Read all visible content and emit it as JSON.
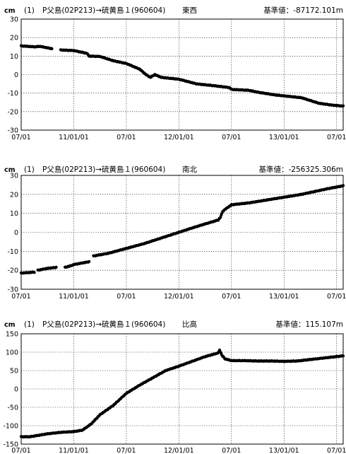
{
  "chart_data": [
    {
      "type": "scatter",
      "unit": "cm",
      "station": "(1)",
      "route": "P父島(02P213)→硫黄島１(960604)",
      "component": "東西",
      "ref_label": "基準値：",
      "ref_value": "-87172.101m",
      "ylim": [
        -30,
        30
      ],
      "yticks": [
        30,
        20,
        10,
        0,
        -10,
        -20,
        -30
      ],
      "xlim": [
        0,
        72
      ],
      "xticks": [
        {
          "x": 0,
          "label": "07/01"
        },
        {
          "x": 12,
          "label": "11/01/01"
        },
        {
          "x": 24,
          "label": "07/01"
        },
        {
          "x": 36,
          "label": "12/01/01"
        },
        {
          "x": 48,
          "label": "07/01"
        },
        {
          "x": 60,
          "label": "13/01/01"
        },
        {
          "x": 72,
          "label": "07/01"
        }
      ],
      "grid": true,
      "series": [
        {
          "gaps_after": [
            3
          ],
          "points": [
            [
              0,
              15.5
            ],
            [
              3.2,
              15
            ],
            [
              4.2,
              15.3
            ],
            [
              7,
              14
            ],
            [
              9,
              13.3
            ],
            [
              12,
              13
            ],
            [
              15,
              11.5
            ],
            [
              15.5,
              10
            ],
            [
              18,
              9.8
            ],
            [
              21,
              7.5
            ],
            [
              24,
              6
            ],
            [
              27,
              3
            ],
            [
              28.5,
              0
            ],
            [
              29.5,
              -1.5
            ],
            [
              30.5,
              0
            ],
            [
              32,
              -1.5
            ],
            [
              36,
              -2.5
            ],
            [
              40,
              -5
            ],
            [
              44,
              -6
            ],
            [
              47.5,
              -7
            ],
            [
              48,
              -8
            ],
            [
              52,
              -8.5
            ],
            [
              54,
              -9.5
            ],
            [
              58,
              -11
            ],
            [
              62,
              -12
            ],
            [
              64,
              -12.5
            ],
            [
              68,
              -15.5
            ],
            [
              71,
              -16.5
            ],
            [
              73.5,
              -17
            ]
          ]
        }
      ]
    },
    {
      "type": "scatter",
      "unit": "cm",
      "station": "(1)",
      "route": "P父島(02P213)→硫黄島１(960604)",
      "component": "南北",
      "ref_label": "基準値：",
      "ref_value": "-256325.306m",
      "ylim": [
        -30,
        30
      ],
      "yticks": [
        30,
        20,
        10,
        0,
        -10,
        -20,
        -30
      ],
      "xlim": [
        0,
        72
      ],
      "xticks": [
        {
          "x": 0,
          "label": "07/01"
        },
        {
          "x": 12,
          "label": "11/01/01"
        },
        {
          "x": 24,
          "label": "07/01"
        },
        {
          "x": 36,
          "label": "12/01/01"
        },
        {
          "x": 48,
          "label": "07/01"
        },
        {
          "x": 60,
          "label": "13/01/01"
        },
        {
          "x": 72,
          "label": "07/01"
        }
      ],
      "grid": true,
      "series": [
        {
          "gaps_after": [
            1,
            4,
            8
          ],
          "points": [
            [
              0,
              -21.5
            ],
            [
              3,
              -21
            ],
            [
              3.8,
              -20
            ],
            [
              6,
              -19
            ],
            [
              8,
              -18.5
            ],
            [
              10,
              -18.5
            ],
            [
              11.5,
              -17.5
            ],
            [
              12,
              -17
            ],
            [
              15.5,
              -15.5
            ],
            [
              16.5,
              -12.5
            ],
            [
              20,
              -11
            ],
            [
              24,
              -8.5
            ],
            [
              28,
              -6
            ],
            [
              32,
              -3
            ],
            [
              36,
              0
            ],
            [
              40,
              3
            ],
            [
              44,
              5.8
            ],
            [
              45,
              6.5
            ],
            [
              45.5,
              8
            ],
            [
              46,
              11
            ],
            [
              46.5,
              12
            ],
            [
              48,
              14.5
            ],
            [
              52,
              15.5
            ],
            [
              56,
              17
            ],
            [
              60,
              18.5
            ],
            [
              64,
              20
            ],
            [
              66,
              21
            ],
            [
              70,
              23
            ],
            [
              73.5,
              24.5
            ]
          ]
        }
      ]
    },
    {
      "type": "scatter",
      "unit": "cm",
      "station": "(1)",
      "route": "P父島(02P213)→硫黄島１(960604)",
      "component": "比高",
      "ref_label": "基準値：",
      "ref_value": "115.107m",
      "ylim": [
        -150,
        150
      ],
      "yticks": [
        150,
        100,
        50,
        0,
        -50,
        -100,
        -150
      ],
      "xlim": [
        0,
        72
      ],
      "xticks": [
        {
          "x": 0,
          "label": "07/01"
        },
        {
          "x": 12,
          "label": "11/01/01"
        },
        {
          "x": 24,
          "label": "07/01"
        },
        {
          "x": 36,
          "label": "12/01/01"
        },
        {
          "x": 48,
          "label": "07/01"
        },
        {
          "x": 60,
          "label": "13/01/01"
        },
        {
          "x": 72,
          "label": "07/01"
        }
      ],
      "grid": true,
      "series": [
        {
          "gaps_after": [],
          "points": [
            [
              0,
              -130
            ],
            [
              2,
              -130
            ],
            [
              3.5,
              -127
            ],
            [
              6,
              -122
            ],
            [
              9,
              -118
            ],
            [
              12,
              -116
            ],
            [
              14,
              -112
            ],
            [
              16,
              -95
            ],
            [
              18,
              -70
            ],
            [
              21,
              -45
            ],
            [
              24,
              -12
            ],
            [
              27,
              10
            ],
            [
              30,
              30
            ],
            [
              33,
              50
            ],
            [
              36,
              62
            ],
            [
              39,
              75
            ],
            [
              42,
              88
            ],
            [
              43.5,
              93
            ],
            [
              45,
              98
            ],
            [
              45.3,
              106
            ],
            [
              45.8,
              92
            ],
            [
              46.5,
              82
            ],
            [
              48,
              77
            ],
            [
              51,
              77
            ],
            [
              54,
              76
            ],
            [
              57,
              76
            ],
            [
              60,
              75
            ],
            [
              63,
              76
            ],
            [
              66,
              80
            ],
            [
              69,
              84
            ],
            [
              72,
              88
            ],
            [
              73.5,
              90
            ]
          ]
        }
      ]
    }
  ]
}
